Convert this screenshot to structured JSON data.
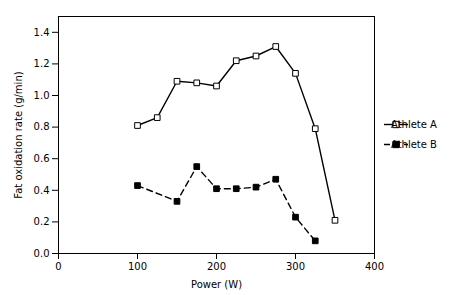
{
  "chart_data": {
    "type": "line",
    "xlabel": "Power (W)",
    "ylabel": "Fat oxidation rate (g/min)",
    "series": [
      {
        "name": "Athlete A",
        "color": "#000000",
        "marker": "square-open",
        "line_style": "solid",
        "x": [
          100,
          125,
          150,
          175,
          200,
          225,
          250,
          275,
          300,
          325,
          350
        ],
        "values": [
          0.81,
          0.86,
          1.09,
          1.08,
          1.06,
          1.22,
          1.25,
          1.31,
          1.14,
          0.79,
          0.21
        ]
      },
      {
        "name": "Athlete B",
        "color": "#000000",
        "marker": "square",
        "line_style": "dashed",
        "x": [
          100,
          150,
          175,
          200,
          225,
          250,
          275,
          300,
          325
        ],
        "values": [
          0.43,
          0.33,
          0.55,
          0.41,
          0.41,
          0.42,
          0.47,
          0.23,
          0.08
        ]
      }
    ],
    "xlim": [
      0,
      400
    ],
    "ylim": [
      0.0,
      1.5
    ],
    "xticks": [
      0,
      100,
      200,
      300,
      400
    ],
    "yticks": [
      {
        "value": 0,
        "label": "0.0"
      },
      0.2,
      0.4,
      0.6,
      0.8,
      {
        "value": 1,
        "label": "1.0"
      },
      1.2,
      1.4
    ],
    "grid": false,
    "legend": "right"
  }
}
